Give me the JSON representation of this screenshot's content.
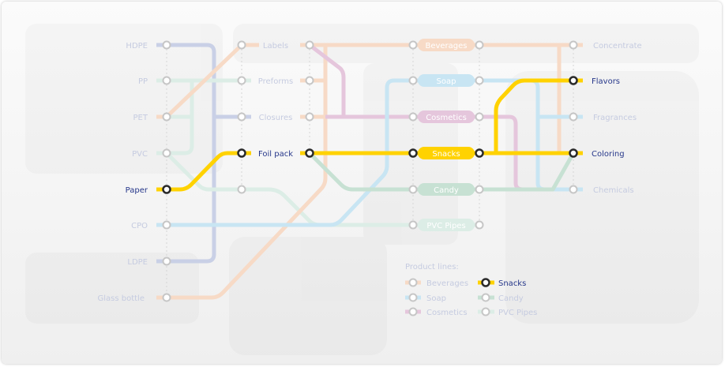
{
  "colors": {
    "beverages": "#f7dac6",
    "soap": "#c8e5f3",
    "cosmetics": "#e5c6dc",
    "snacks": "#ffd200",
    "candy": "#c7e1d3",
    "pvc_pipes": "#dcede6",
    "hdpe": "#c9d0e6",
    "inactive_text": "#c5cbe0",
    "active_text": "#26378a"
  },
  "materials": [
    "HDPE",
    "PP",
    "PET",
    "PVC",
    "Paper",
    "CPO",
    "LDPE",
    "Glass bottle"
  ],
  "components": [
    "Labels",
    "Preforms",
    "Closures",
    "Foil pack"
  ],
  "product_lines": [
    "Beverages",
    "Soap",
    "Cosmetics",
    "Snacks",
    "Candy",
    "PVC Pipes"
  ],
  "ingredients": [
    "Concentrate",
    "Flavors",
    "Fragrances",
    "Coloring",
    "Chemicals"
  ],
  "active_line": "Snacks",
  "legend": {
    "title": "Product lines:",
    "items": [
      "Beverages",
      "Soap",
      "Cosmetics",
      "Snacks",
      "Candy",
      "PVC Pipes"
    ]
  }
}
